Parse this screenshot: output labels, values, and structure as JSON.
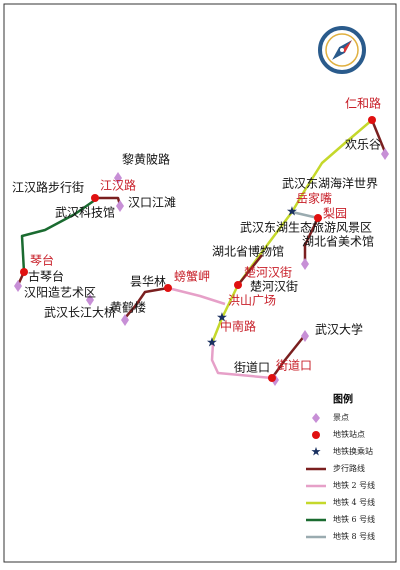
{
  "labels": {
    "attractions": [
      "黎黄陂路",
      "江汉路步行街",
      "汉口江滩",
      "武汉科技馆",
      "古琴台",
      "汉阳造艺术区",
      "武汉长江大桥",
      "黄鹤楼",
      "昙华林",
      "欢乐谷",
      "武汉东湖海洋世界",
      "武汉东湖生态旅游风景区",
      "湖北省美术馆",
      "湖北省博物馆",
      "楚河汉街",
      "武汉大学",
      "街道口"
    ],
    "stations": [
      "江汉路",
      "琴台",
      "螃蟹岬",
      "仁和路",
      "岳家嘴",
      "梨园",
      "楚河汉街",
      "洪山广场",
      "中南路",
      "街道口"
    ]
  },
  "legend": {
    "title": "图例",
    "items": [
      "景点",
      "地铁站点",
      "地铁换乘站",
      "步行路线",
      "地铁 2 号线",
      "地铁 4 号线",
      "地铁 6 号线",
      "地铁 8 号线"
    ]
  }
}
